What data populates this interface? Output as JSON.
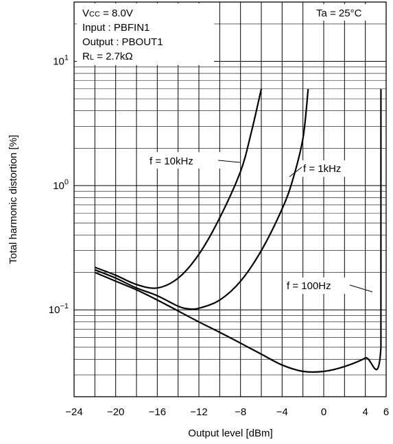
{
  "chart_data": {
    "type": "line",
    "title": "",
    "xlabel": "Output level [dBm]",
    "ylabel": "Total harmonic distortion [%]",
    "xlim": [
      -24,
      6
    ],
    "ylim": [
      0.02,
      30
    ],
    "y_scale": "log",
    "grid": true,
    "x_ticks": [
      -24,
      -20,
      -16,
      -12,
      -8,
      -4,
      0,
      4,
      6
    ],
    "x_tick_labels": [
      "−24",
      "−20",
      "−16",
      "−12",
      "−8",
      "−4",
      "0",
      "4",
      "6"
    ],
    "y_ticks": [
      {
        "base": "10",
        "exp": "1",
        "value": 10
      },
      {
        "base": "10",
        "exp": "0",
        "value": 1
      },
      {
        "base": "10",
        "exp": "−1",
        "value": 0.1
      }
    ],
    "conditions": {
      "vcc_prefix": "V",
      "vcc_sub": "CC",
      "vcc_value": " = 8.0V",
      "input": "Input : PBFIN1",
      "output": "Output : PBOUT1",
      "rl_prefix": "R",
      "rl_sub": "L",
      "rl_value": " = 2.7kΩ",
      "ta": "Ta = 25°C"
    },
    "series": [
      {
        "name": "f = 10kHz",
        "x": [
          -22,
          -20,
          -18,
          -16,
          -14,
          -12,
          -10,
          -8,
          -7,
          -6
        ],
        "y": [
          0.22,
          0.19,
          0.16,
          0.15,
          0.18,
          0.28,
          0.55,
          1.3,
          2.6,
          6.0
        ]
      },
      {
        "name": "f = 1kHz",
        "x": [
          -22,
          -20,
          -18,
          -16,
          -14,
          -13,
          -12,
          -10,
          -8,
          -6,
          -4,
          -3,
          -2,
          -1.5
        ],
        "y": [
          0.21,
          0.18,
          0.15,
          0.13,
          0.107,
          0.102,
          0.103,
          0.12,
          0.17,
          0.3,
          0.65,
          1.1,
          2.4,
          6.0
        ]
      },
      {
        "name": "f = 100Hz",
        "x": [
          -22,
          -20,
          -18,
          -16,
          -14,
          -12,
          -10,
          -8,
          -6,
          -4,
          -2,
          0,
          2,
          4,
          5.5,
          5.5
        ],
        "y": [
          0.2,
          0.17,
          0.145,
          0.12,
          0.098,
          0.08,
          0.066,
          0.054,
          0.044,
          0.036,
          0.032,
          0.032,
          0.035,
          0.041,
          0.05,
          6.0
        ]
      }
    ]
  }
}
